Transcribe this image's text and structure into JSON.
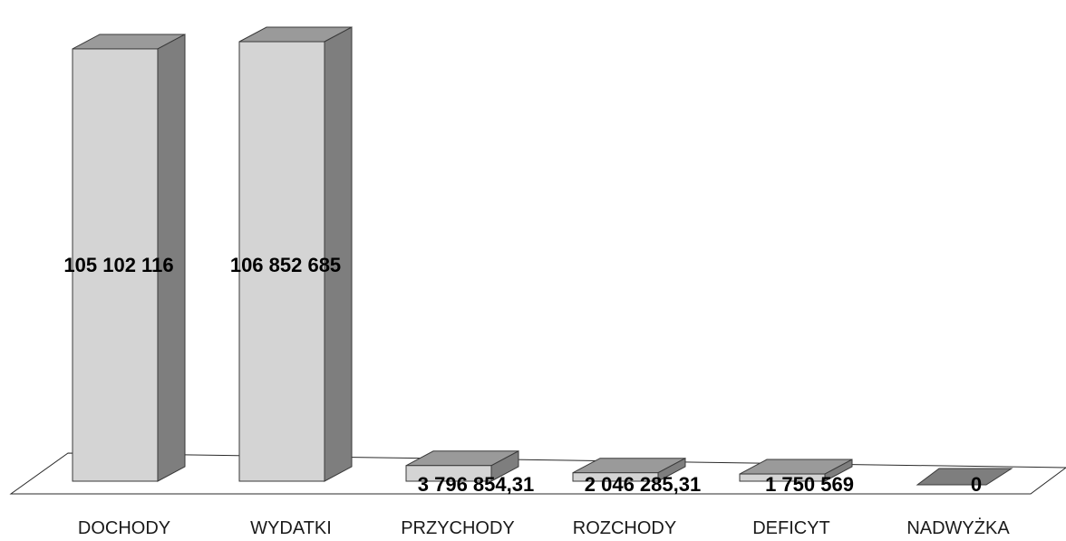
{
  "chart_data": {
    "type": "bar",
    "style": "3d-columns",
    "categories": [
      "DOCHODY",
      "WYDATKI",
      "PRZYCHODY",
      "ROZCHODY",
      "DEFICYT",
      "NADWYŻKA"
    ],
    "values": [
      105102116,
      106852685,
      3796854.31,
      2046285.31,
      1750569,
      0
    ],
    "data_labels": [
      "105 102 116",
      "106 852 685",
      "3 796 854,31",
      "2 046 285,31",
      "1 750 569",
      "0"
    ],
    "title": "",
    "xlabel": "",
    "ylabel": "",
    "ylim": [
      0,
      106852685
    ],
    "grid": false,
    "legend": "none",
    "colors": {
      "front": "#d4d4d4",
      "side": "#7e7e7e",
      "top": "#9a9a9a",
      "outline": "#3a3a3a",
      "floor_line": "#2a2a2a"
    }
  }
}
